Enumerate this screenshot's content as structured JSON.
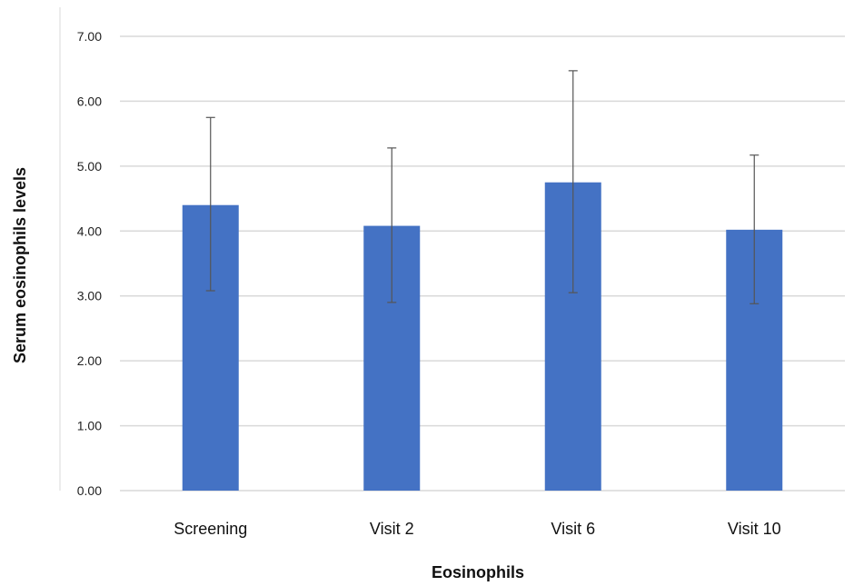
{
  "chart_data": {
    "type": "bar",
    "categories": [
      "Screening",
      "Visit 2",
      "Visit 6",
      "Visit 10"
    ],
    "values": [
      4.4,
      4.08,
      4.75,
      4.02
    ],
    "error_upper": [
      5.75,
      5.28,
      6.47,
      5.17
    ],
    "error_lower": [
      3.08,
      2.9,
      3.05,
      2.88
    ],
    "xlabel": "Eosinophils",
    "ylabel": "Serum eosinophils levels",
    "ylim": [
      0,
      7
    ],
    "yticks": [
      "0.00",
      "1.00",
      "2.00",
      "3.00",
      "4.00",
      "5.00",
      "6.00",
      "7.00"
    ],
    "grid": true,
    "bar_color": "#4472C4",
    "grid_color": "#D9D9D9",
    "error_bar_color": "#555555"
  }
}
